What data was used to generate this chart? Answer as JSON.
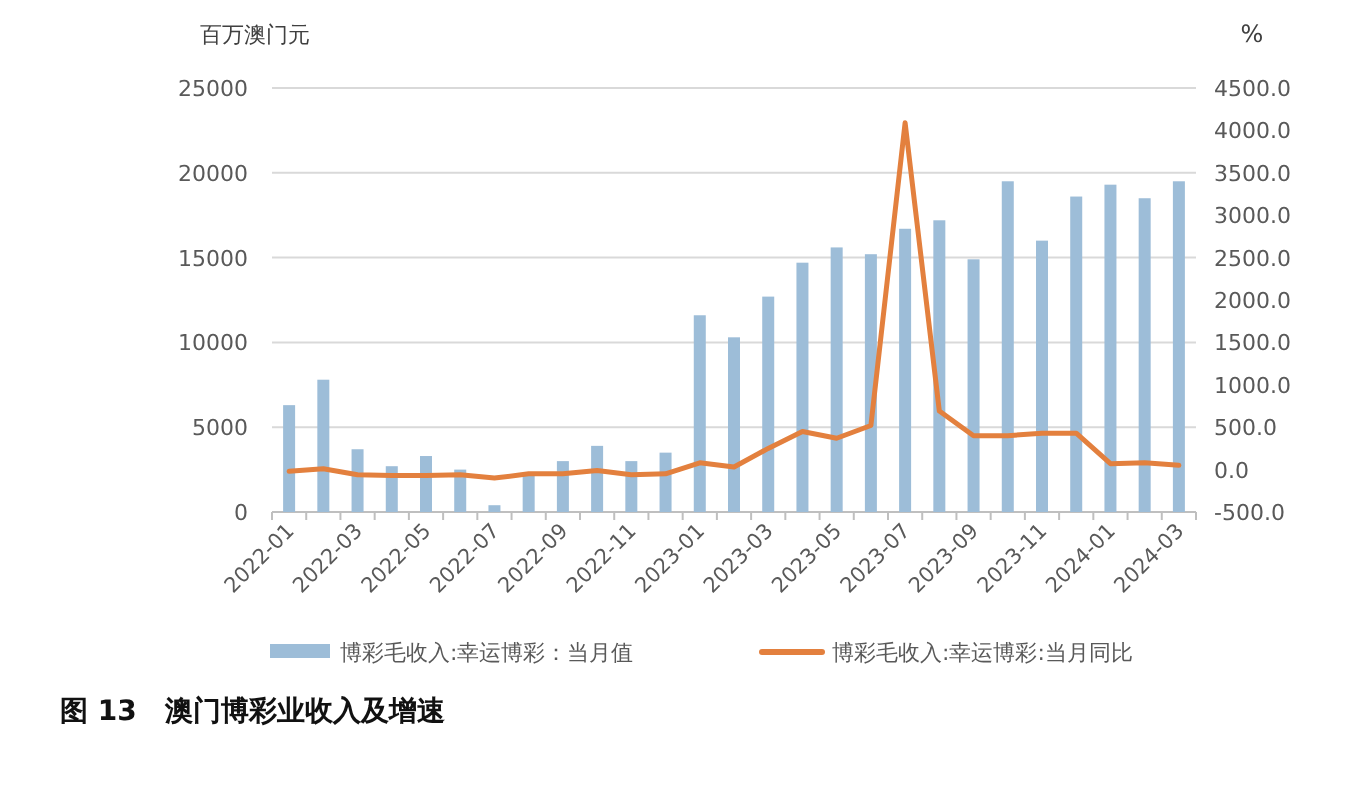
{
  "chart_data": {
    "type": "bar",
    "categories": [
      "2022-01",
      null,
      "2022-03",
      null,
      "2022-05",
      null,
      "2022-07",
      null,
      "2022-09",
      null,
      "2022-11",
      null,
      "2023-01",
      null,
      "2023-03",
      null,
      "2023-05",
      null,
      "2023-07",
      null,
      "2023-09",
      null,
      "2023-11",
      null,
      "2024-01",
      null,
      "2024-03"
    ],
    "ylabel": "百万澳门元",
    "y2label": "%",
    "ylim": [
      0,
      25000
    ],
    "yticks": [
      0,
      5000,
      10000,
      15000,
      20000,
      25000
    ],
    "y2lim": [
      -500,
      4500
    ],
    "y2ticks": [
      {
        "value": -500,
        "label": "-500.0"
      },
      {
        "value": 0,
        "label": "0.0"
      },
      {
        "value": 500,
        "label": "500.0"
      },
      {
        "value": 1000,
        "label": "1000.0"
      },
      {
        "value": 1500,
        "label": "1500.0"
      },
      {
        "value": 2000,
        "label": "2000.0"
      },
      {
        "value": 2500,
        "label": "2500.0"
      },
      {
        "value": 3000,
        "label": "3000.0"
      },
      {
        "value": 3500,
        "label": "3500.0"
      },
      {
        "value": 4000,
        "label": "4000.0"
      },
      {
        "value": 4500,
        "label": "4500.0"
      }
    ],
    "grid": "y",
    "legend": "bottom",
    "series": [
      {
        "name": "博彩毛收入:幸运博彩：当月值",
        "color": "#9dbdd8",
        "values": [
          6300,
          7800,
          3700,
          2700,
          3300,
          2500,
          400,
          2200,
          3000,
          3900,
          3000,
          3500,
          11600,
          10300,
          12700,
          14700,
          15600,
          15200,
          16700,
          17200,
          14900,
          19500,
          16000,
          18600,
          19300,
          18500,
          19500
        ]
      },
      {
        "name": "博彩毛收入:幸运博彩:当月同比",
        "type": "line",
        "axis": "y2",
        "color": "#e3803e",
        "values": [
          -20,
          10,
          -60,
          -70,
          -70,
          -60,
          -100,
          -50,
          -50,
          -10,
          -60,
          -50,
          80,
          30,
          250,
          450,
          370,
          520,
          4090,
          690,
          400,
          400,
          430,
          430,
          70,
          80,
          50
        ]
      }
    ],
    "annotations": [
      "图 13　澳门博彩业收入及增速"
    ]
  }
}
